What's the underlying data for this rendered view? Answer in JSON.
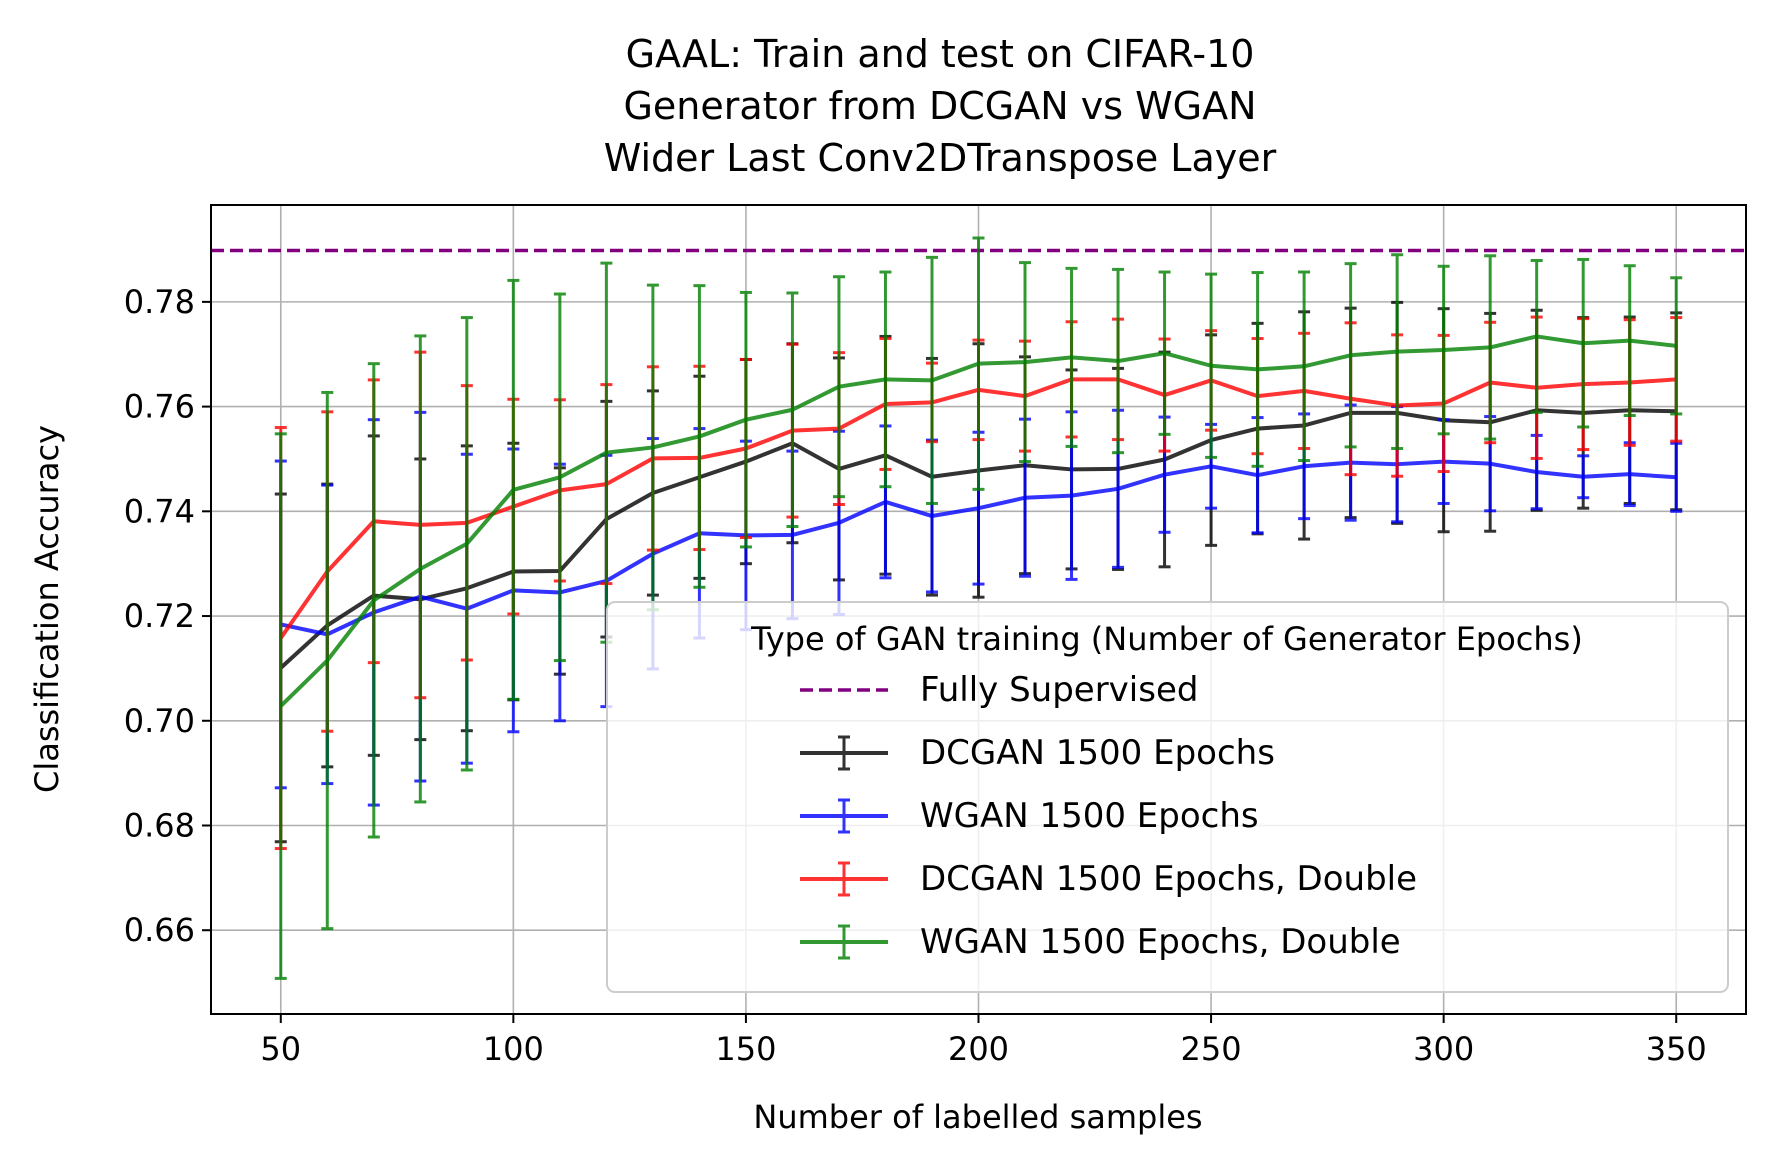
{
  "chart_data": {
    "type": "line",
    "title_lines": [
      "GAAL: Train and test on CIFAR-10",
      "Generator from DCGAN vs WGAN",
      "Wider Last Conv2DTranspose Layer"
    ],
    "xlabel": "Number of labelled samples",
    "ylabel": "Classification Accuracy",
    "xlim": [
      35,
      365
    ],
    "ylim": [
      0.644,
      0.7985
    ],
    "xticks": [
      50,
      100,
      150,
      200,
      250,
      300,
      350
    ],
    "xtick_labels": [
      "50",
      "100",
      "150",
      "200",
      "250",
      "300",
      "350"
    ],
    "yticks": [
      0.66,
      0.68,
      0.7,
      0.72,
      0.74,
      0.76,
      0.78
    ],
    "ytick_labels": [
      "0.66",
      "0.68",
      "0.70",
      "0.72",
      "0.74",
      "0.76",
      "0.78"
    ],
    "grid": true,
    "x": [
      50,
      60,
      70,
      80,
      90,
      100,
      110,
      120,
      130,
      140,
      150,
      160,
      170,
      180,
      190,
      200,
      210,
      220,
      230,
      240,
      250,
      260,
      270,
      280,
      290,
      300,
      310,
      320,
      330,
      340,
      350
    ],
    "reference_line": {
      "name": "Fully Supervised",
      "value": 0.7898,
      "color": "#800080",
      "style": "dashed"
    },
    "legend": {
      "title": "Type of GAN training (Number of Generator Epochs)",
      "position": "lower-right",
      "entries": [
        "Fully Supervised",
        "DCGAN 1500 Epochs",
        "WGAN 1500 Epochs",
        "DCGAN 1500 Epochs, Double",
        "WGAN 1500 Epochs, Double"
      ]
    },
    "series": [
      {
        "name": "DCGAN 1500 Epochs",
        "color": "#000000",
        "values": [
          0.7101,
          0.7182,
          0.7239,
          0.7232,
          0.7253,
          0.7285,
          0.7286,
          0.7385,
          0.7435,
          0.7465,
          0.7495,
          0.753,
          0.7481,
          0.7507,
          0.7466,
          0.7478,
          0.7488,
          0.748,
          0.7481,
          0.7499,
          0.7536,
          0.7558,
          0.7564,
          0.7588,
          0.7588,
          0.7574,
          0.757,
          0.7593,
          0.7588,
          0.7593,
          0.7591
        ],
        "errors": [
          0.0332,
          0.027,
          0.0305,
          0.0268,
          0.0272,
          0.0245,
          0.0197,
          0.0225,
          0.0195,
          0.0193,
          0.0195,
          0.019,
          0.0212,
          0.0227,
          0.0226,
          0.0242,
          0.0207,
          0.019,
          0.0192,
          0.0205,
          0.0201,
          0.0201,
          0.0217,
          0.02,
          0.0211,
          0.0213,
          0.0208,
          0.0191,
          0.0182,
          0.0178,
          0.0188
        ]
      },
      {
        "name": "WGAN 1500 Epochs",
        "color": "#0000ff",
        "values": [
          0.7184,
          0.7165,
          0.7207,
          0.7237,
          0.7214,
          0.7249,
          0.7245,
          0.7267,
          0.7319,
          0.7358,
          0.7354,
          0.7355,
          0.7378,
          0.7418,
          0.7391,
          0.7406,
          0.7426,
          0.743,
          0.7443,
          0.747,
          0.7486,
          0.7469,
          0.7486,
          0.7493,
          0.749,
          0.7495,
          0.7491,
          0.7475,
          0.7466,
          0.7471,
          0.7465
        ],
        "errors": [
          0.0312,
          0.0285,
          0.0368,
          0.0352,
          0.0295,
          0.027,
          0.0245,
          0.024,
          0.022,
          0.02,
          0.018,
          0.016,
          0.0175,
          0.0145,
          0.0145,
          0.0145,
          0.015,
          0.016,
          0.015,
          0.011,
          0.008,
          0.011,
          0.01,
          0.011,
          0.011,
          0.008,
          0.009,
          0.007,
          0.004,
          0.006,
          0.0065
        ]
      },
      {
        "name": "DCGAN 1500 Epochs, Double",
        "color": "#ff0000",
        "values": [
          0.7158,
          0.7285,
          0.7381,
          0.7374,
          0.7378,
          0.7409,
          0.744,
          0.7452,
          0.7501,
          0.7502,
          0.752,
          0.7554,
          0.7558,
          0.7605,
          0.7608,
          0.7632,
          0.762,
          0.7652,
          0.7652,
          0.7622,
          0.765,
          0.762,
          0.763,
          0.7615,
          0.7602,
          0.7606,
          0.7646,
          0.7636,
          0.7643,
          0.7646,
          0.7652
        ],
        "errors": [
          0.0402,
          0.0305,
          0.027,
          0.033,
          0.0262,
          0.0205,
          0.0173,
          0.019,
          0.0175,
          0.0175,
          0.017,
          0.0165,
          0.0145,
          0.0125,
          0.0075,
          0.0095,
          0.0105,
          0.011,
          0.0115,
          0.0107,
          0.0095,
          0.011,
          0.011,
          0.0145,
          0.0135,
          0.013,
          0.0115,
          0.0135,
          0.0125,
          0.012,
          0.0118
        ]
      },
      {
        "name": "WGAN 1500 Epochs, Double",
        "color": "#008000",
        "values": [
          0.7028,
          0.7115,
          0.723,
          0.729,
          0.7338,
          0.7441,
          0.7465,
          0.7512,
          0.7522,
          0.7543,
          0.7575,
          0.7594,
          0.7638,
          0.7652,
          0.765,
          0.7682,
          0.7685,
          0.7694,
          0.7687,
          0.7702,
          0.7678,
          0.7671,
          0.7677,
          0.7698,
          0.7705,
          0.7708,
          0.7713,
          0.7734,
          0.7721,
          0.7726,
          0.7716
        ],
        "errors": [
          0.052,
          0.0512,
          0.0452,
          0.0445,
          0.0432,
          0.04,
          0.035,
          0.0362,
          0.031,
          0.0288,
          0.0243,
          0.0223,
          0.021,
          0.0205,
          0.0235,
          0.024,
          0.019,
          0.017,
          0.0175,
          0.0155,
          0.0175,
          0.0185,
          0.018,
          0.0175,
          0.0185,
          0.016,
          0.0175,
          0.0145,
          0.016,
          0.0143,
          0.013
        ]
      }
    ]
  }
}
